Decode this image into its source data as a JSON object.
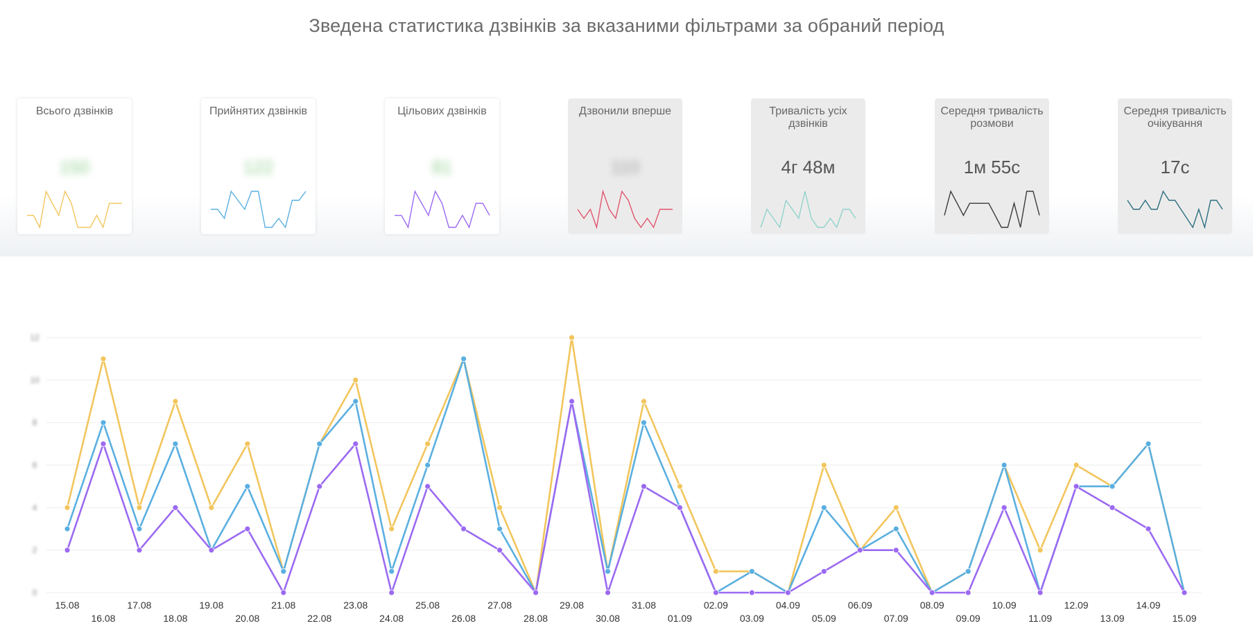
{
  "page": {
    "title": "Зведена статистика дзвінків за вказаними фільтрами за обраний період"
  },
  "cards": [
    {
      "id": "total",
      "title": "Всього дзвінків",
      "value": "150",
      "blurred": true,
      "style": "white",
      "color": "#f2c55c",
      "spark": [
        1,
        1,
        0,
        3,
        2,
        1,
        3,
        2,
        0,
        0,
        0,
        1,
        0,
        2,
        2,
        2
      ]
    },
    {
      "id": "accepted",
      "title": "Прийнятих дзвінків",
      "value": "122",
      "blurred": true,
      "style": "white",
      "color": "#5aafe0",
      "spark": [
        2,
        2,
        1,
        4,
        3,
        2,
        4,
        4,
        0,
        0,
        1,
        0,
        3,
        3,
        4
      ]
    },
    {
      "id": "target",
      "title": "Цільових дзвінків",
      "value": "81",
      "blurred": true,
      "style": "white",
      "color": "#9b6af2",
      "spark": [
        1,
        1,
        0,
        3,
        2,
        1,
        3,
        2,
        0,
        0,
        1,
        0,
        2,
        2,
        1
      ]
    },
    {
      "id": "first",
      "title": "Дзвонили вперше",
      "value": "110",
      "blurred": true,
      "style": "grey",
      "color": "#e0566f",
      "spark": [
        2,
        1,
        2,
        0,
        4,
        2,
        1,
        4,
        3,
        1,
        0,
        1,
        0,
        2,
        2,
        2
      ]
    },
    {
      "id": "duration",
      "title": "Тривалість усіх дзвінків",
      "value": "4г 48м",
      "blurred": false,
      "style": "grey",
      "color": "#8fd3cb",
      "spark": [
        0,
        2,
        1,
        0,
        3,
        2,
        1,
        4,
        1,
        0,
        0,
        1,
        0,
        2,
        2,
        1
      ]
    },
    {
      "id": "avg_talk",
      "title": "Середня тривалість розмови",
      "value": "1м 55с",
      "blurred": false,
      "style": "grey",
      "color": "#3a3a3a",
      "spark": [
        1,
        3,
        2,
        1,
        2,
        2,
        2,
        2,
        1,
        0,
        0,
        2,
        0,
        3,
        3,
        1
      ]
    },
    {
      "id": "avg_wait",
      "title": "Середня тривалість очікування",
      "value": "17с",
      "blurred": false,
      "style": "grey",
      "color": "#2b6f80",
      "spark": [
        3,
        2,
        2,
        3,
        2,
        2,
        4,
        3,
        3,
        2,
        1,
        0,
        2,
        0,
        3,
        3,
        2
      ]
    }
  ],
  "chart_data": {
    "type": "line",
    "categories": [
      "15.08",
      "16.08",
      "17.08",
      "18.08",
      "19.08",
      "20.08",
      "21.08",
      "22.08",
      "23.08",
      "24.08",
      "25.08",
      "26.08",
      "27.08",
      "28.08",
      "29.08",
      "30.08",
      "31.08",
      "01.09",
      "02.09",
      "03.09",
      "04.09",
      "05.09",
      "06.09",
      "07.09",
      "08.09",
      "09.09",
      "10.09",
      "11.09",
      "12.09",
      "13.09",
      "14.09",
      "15.09"
    ],
    "ylim": [
      0,
      12
    ],
    "y_ticks": [
      "0",
      "2",
      "4",
      "6",
      "8",
      "10",
      "12"
    ],
    "grid": true,
    "series": [
      {
        "name": "Всього дзвінків",
        "color": "#f2c55c",
        "values": [
          4,
          11,
          4,
          9,
          4,
          7,
          1,
          7,
          10,
          3,
          7,
          11,
          4,
          0,
          12,
          1,
          9,
          5,
          1,
          1,
          0,
          6,
          2,
          4,
          0,
          1,
          6,
          2,
          6,
          5,
          7,
          0
        ]
      },
      {
        "name": "Прийнятих дзвінків",
        "color": "#5aafe0",
        "values": [
          3,
          8,
          3,
          7,
          2,
          5,
          1,
          7,
          9,
          1,
          6,
          11,
          3,
          0,
          9,
          1,
          8,
          4,
          0,
          1,
          0,
          4,
          2,
          3,
          0,
          1,
          6,
          0,
          5,
          5,
          7,
          0
        ]
      },
      {
        "name": "Цільових дзвінків",
        "color": "#9b6af2",
        "values": [
          2,
          7,
          2,
          4,
          2,
          3,
          0,
          5,
          7,
          0,
          5,
          3,
          2,
          0,
          9,
          0,
          5,
          4,
          0,
          0,
          0,
          1,
          2,
          2,
          0,
          0,
          4,
          0,
          5,
          4,
          3,
          0
        ]
      }
    ]
  }
}
